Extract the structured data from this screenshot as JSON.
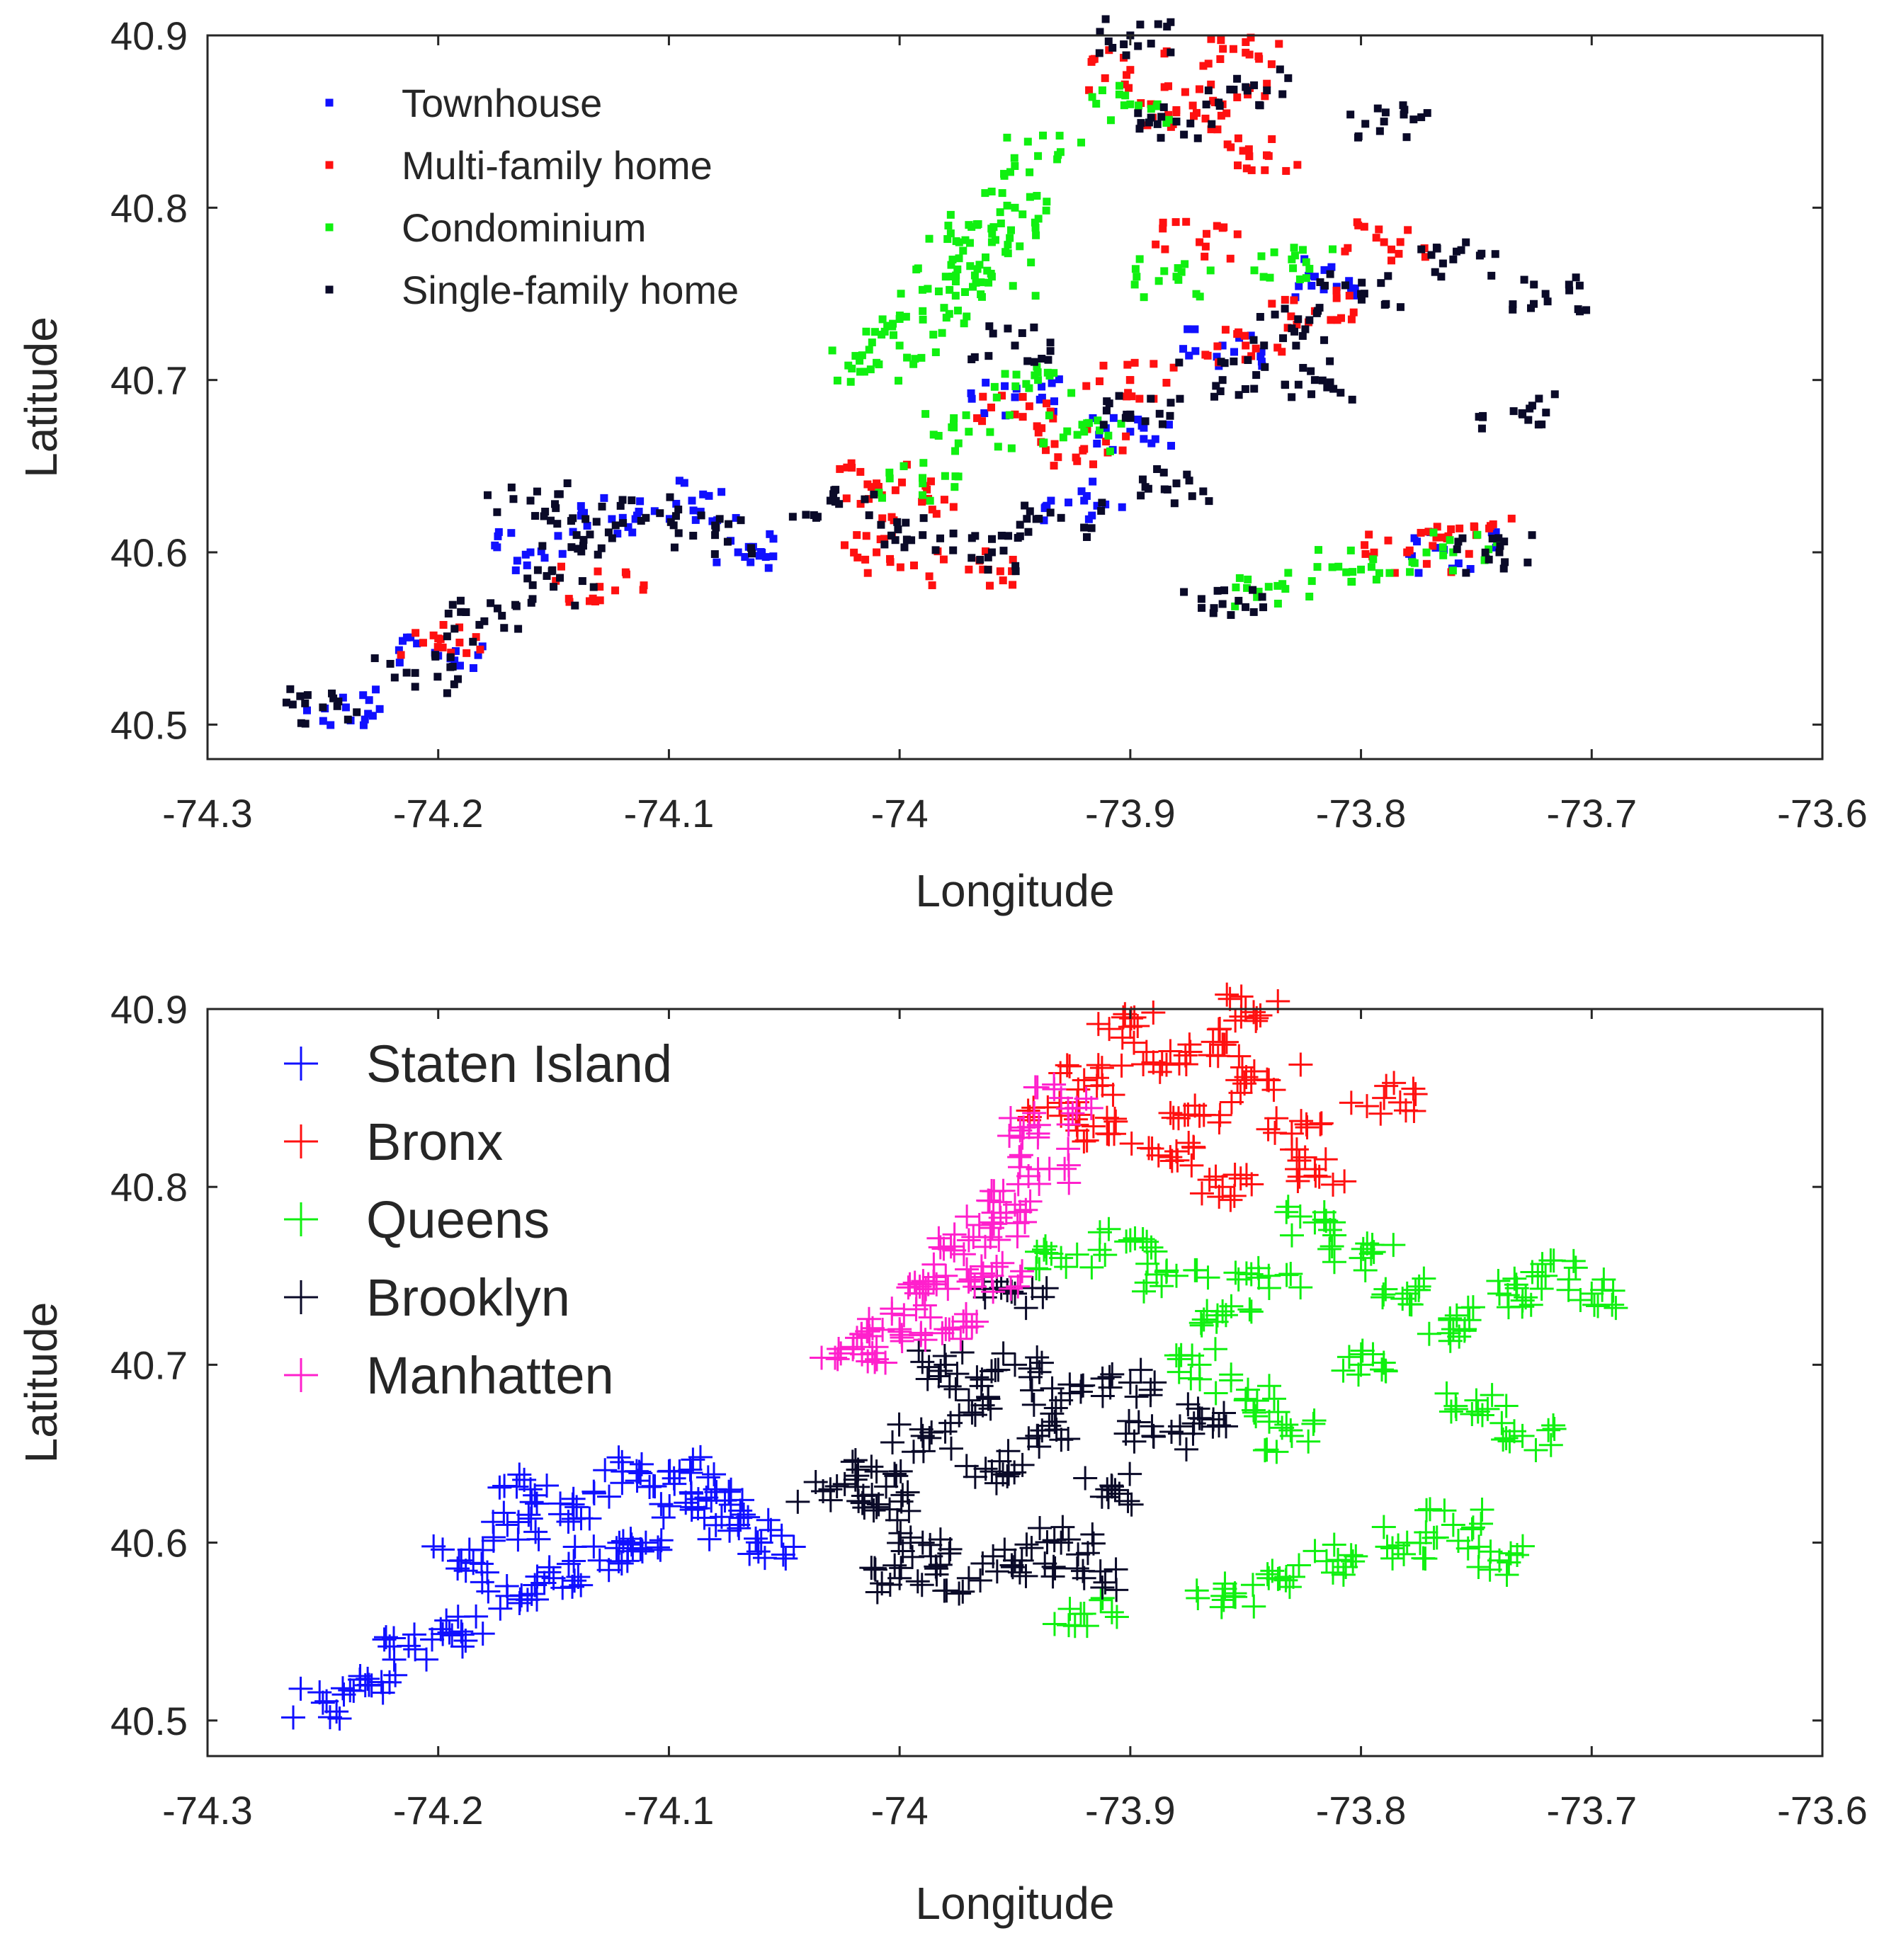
{
  "chart_data": [
    {
      "type": "scatter",
      "title": "",
      "xlabel": "Longitude",
      "ylabel": "Latitude",
      "xlim": [
        -74.3,
        -73.6
      ],
      "ylim": [
        40.48,
        40.9
      ],
      "xticks": [
        -74.3,
        -74.2,
        -74.1,
        -74.0,
        -73.9,
        -73.8,
        -73.7,
        -73.6
      ],
      "xtick_labels": [
        "-74.3",
        "-74.2",
        "-74.1",
        "-74",
        "-73.9",
        "-73.8",
        "-73.7",
        "-73.6"
      ],
      "yticks": [
        40.5,
        40.6,
        40.7,
        40.8,
        40.9
      ],
      "ytick_labels": [
        "40.5",
        "40.6",
        "40.7",
        "40.8",
        "40.9"
      ],
      "grid": false,
      "legend_position": "top-left",
      "marker": "square",
      "series": [
        {
          "name": "Townhouse",
          "color": "#1010ff",
          "points": [
            [
              -74.24,
              40.51
            ],
            [
              -74.16,
              40.6
            ],
            [
              -74.12,
              40.62
            ],
            [
              -74.09,
              40.63
            ],
            [
              -74.2,
              40.54
            ],
            [
              -74.07,
              40.6
            ],
            [
              -73.95,
              40.69
            ],
            [
              -73.9,
              40.67
            ],
            [
              -73.86,
              40.72
            ],
            [
              -73.82,
              40.76
            ],
            [
              -73.76,
              40.6
            ],
            [
              -73.92,
              40.63
            ]
          ]
        },
        {
          "name": "Multi-family home",
          "color": "#ff1010",
          "points": [
            [
              -73.9,
              40.88
            ],
            [
              -73.88,
              40.85
            ],
            [
              -73.86,
              40.86
            ],
            [
              -73.85,
              40.89
            ],
            [
              -73.84,
              40.83
            ],
            [
              -73.87,
              40.78
            ],
            [
              -73.82,
              40.74
            ],
            [
              -73.9,
              40.7
            ],
            [
              -73.95,
              40.68
            ],
            [
              -73.99,
              40.63
            ],
            [
              -74.01,
              40.6
            ],
            [
              -73.97,
              40.59
            ],
            [
              -73.78,
              40.6
            ],
            [
              -73.75,
              40.61
            ],
            [
              -74.13,
              40.58
            ],
            [
              -74.2,
              40.55
            ],
            [
              -73.79,
              40.78
            ],
            [
              -73.85,
              40.72
            ],
            [
              -73.92,
              40.66
            ],
            [
              -74.01,
              40.64
            ]
          ]
        },
        {
          "name": "Condominium",
          "color": "#10f010",
          "points": [
            [
              -73.97,
              40.79
            ],
            [
              -73.96,
              40.78
            ],
            [
              -73.95,
              40.8
            ],
            [
              -73.94,
              40.83
            ],
            [
              -73.99,
              40.74
            ],
            [
              -74.0,
              40.72
            ],
            [
              -74.01,
              40.71
            ],
            [
              -73.98,
              40.76
            ],
            [
              -73.96,
              40.76
            ],
            [
              -73.94,
              40.7
            ],
            [
              -73.92,
              40.67
            ],
            [
              -73.97,
              40.67
            ],
            [
              -73.9,
              40.86
            ],
            [
              -73.88,
              40.76
            ],
            [
              -73.83,
              40.77
            ],
            [
              -73.76,
              40.6
            ],
            [
              -73.8,
              40.59
            ],
            [
              -73.84,
              40.58
            ],
            [
              -73.99,
              40.64
            ]
          ]
        },
        {
          "name": "Single-family home",
          "color": "#0a0a28",
          "points": [
            [
              -74.25,
              40.51
            ],
            [
              -74.21,
              40.53
            ],
            [
              -74.18,
              40.56
            ],
            [
              -74.15,
              40.58
            ],
            [
              -74.14,
              40.61
            ],
            [
              -74.11,
              40.62
            ],
            [
              -74.08,
              40.61
            ],
            [
              -74.16,
              40.63
            ],
            [
              -74.03,
              40.63
            ],
            [
              -73.99,
              40.61
            ],
            [
              -73.96,
              40.6
            ],
            [
              -73.93,
              40.62
            ],
            [
              -73.9,
              40.68
            ],
            [
              -73.86,
              40.7
            ],
            [
              -73.83,
              40.73
            ],
            [
              -73.8,
              40.75
            ],
            [
              -73.76,
              40.77
            ],
            [
              -73.72,
              40.75
            ],
            [
              -73.85,
              40.87
            ],
            [
              -73.88,
              40.85
            ],
            [
              -73.79,
              40.85
            ],
            [
              -73.9,
              40.9
            ],
            [
              -73.82,
              40.7
            ],
            [
              -73.73,
              40.68
            ],
            [
              -73.95,
              40.72
            ],
            [
              -73.88,
              40.64
            ],
            [
              -73.86,
              40.57
            ],
            [
              -73.74,
              40.6
            ]
          ]
        }
      ]
    },
    {
      "type": "scatter",
      "title": "",
      "xlabel": "Longitude",
      "ylabel": "Latitude",
      "xlim": [
        -74.3,
        -73.6
      ],
      "ylim": [
        40.48,
        40.9
      ],
      "xticks": [
        -74.3,
        -74.2,
        -74.1,
        -74.0,
        -73.9,
        -73.8,
        -73.7,
        -73.6
      ],
      "xtick_labels": [
        "-74.3",
        "-74.2",
        "-74.1",
        "-74",
        "-73.9",
        "-73.8",
        "-73.7",
        "-73.6"
      ],
      "yticks": [
        40.5,
        40.6,
        40.7,
        40.8,
        40.9
      ],
      "ytick_labels": [
        "40.5",
        "40.6",
        "40.7",
        "40.8",
        "40.9"
      ],
      "grid": false,
      "legend_position": "top-left",
      "marker": "plus",
      "series": [
        {
          "name": "Staten Island",
          "color": "#1010ff",
          "points": [
            [
              -74.25,
              40.51
            ],
            [
              -74.23,
              40.52
            ],
            [
              -74.21,
              40.54
            ],
            [
              -74.19,
              40.55
            ],
            [
              -74.17,
              40.57
            ],
            [
              -74.15,
              40.58
            ],
            [
              -74.13,
              40.59
            ],
            [
              -74.11,
              40.6
            ],
            [
              -74.09,
              40.62
            ],
            [
              -74.07,
              40.61
            ],
            [
              -74.16,
              40.63
            ],
            [
              -74.14,
              40.62
            ],
            [
              -74.12,
              40.64
            ],
            [
              -74.1,
              40.64
            ],
            [
              -74.08,
              40.63
            ],
            [
              -74.19,
              40.59
            ],
            [
              -74.17,
              40.61
            ],
            [
              -74.06,
              40.6
            ]
          ]
        },
        {
          "name": "Bronx",
          "color": "#ff1010",
          "points": [
            [
              -73.92,
              40.86
            ],
            [
              -73.9,
              40.89
            ],
            [
              -73.89,
              40.87
            ],
            [
              -73.87,
              40.84
            ],
            [
              -73.86,
              40.88
            ],
            [
              -73.85,
              40.9
            ],
            [
              -73.84,
              40.86
            ],
            [
              -73.83,
              40.83
            ],
            [
              -73.82,
              40.81
            ],
            [
              -73.91,
              40.83
            ],
            [
              -73.88,
              40.82
            ],
            [
              -73.86,
              40.8
            ],
            [
              -73.79,
              40.85
            ],
            [
              -73.93,
              40.84
            ]
          ]
        },
        {
          "name": "Queens",
          "color": "#10f010",
          "points": [
            [
              -73.93,
              40.76
            ],
            [
              -73.9,
              40.77
            ],
            [
              -73.88,
              40.75
            ],
            [
              -73.86,
              40.73
            ],
            [
              -73.84,
              40.75
            ],
            [
              -73.82,
              40.78
            ],
            [
              -73.8,
              40.76
            ],
            [
              -73.78,
              40.74
            ],
            [
              -73.76,
              40.72
            ],
            [
              -73.74,
              40.74
            ],
            [
              -73.72,
              40.75
            ],
            [
              -73.7,
              40.74
            ],
            [
              -73.75,
              40.68
            ],
            [
              -73.73,
              40.66
            ],
            [
              -73.8,
              40.7
            ],
            [
              -73.85,
              40.68
            ],
            [
              -73.87,
              40.7
            ],
            [
              -73.83,
              40.66
            ],
            [
              -73.78,
              40.6
            ],
            [
              -73.76,
              40.61
            ],
            [
              -73.81,
              40.59
            ],
            [
              -73.74,
              40.59
            ],
            [
              -73.84,
              40.58
            ],
            [
              -73.86,
              40.57
            ],
            [
              -73.92,
              40.56
            ]
          ]
        },
        {
          "name": "Brooklyn",
          "color": "#0a0a28",
          "points": [
            [
              -74.03,
              40.63
            ],
            [
              -74.01,
              40.62
            ],
            [
              -73.99,
              40.6
            ],
            [
              -73.97,
              40.58
            ],
            [
              -73.95,
              40.59
            ],
            [
              -73.93,
              40.6
            ],
            [
              -73.91,
              40.63
            ],
            [
              -73.89,
              40.66
            ],
            [
              -73.93,
              40.68
            ],
            [
              -73.95,
              40.7
            ],
            [
              -73.97,
              40.68
            ],
            [
              -73.99,
              40.66
            ],
            [
              -74.01,
              40.64
            ],
            [
              -73.96,
              40.64
            ],
            [
              -73.94,
              40.66
            ],
            [
              -73.9,
              40.69
            ],
            [
              -73.87,
              40.67
            ],
            [
              -73.98,
              40.7
            ],
            [
              -73.95,
              40.74
            ],
            [
              -73.92,
              40.58
            ],
            [
              -74.0,
              40.58
            ]
          ]
        },
        {
          "name": "Manhatten",
          "color": "#ff20cc",
          "points": [
            [
              -74.01,
              40.71
            ],
            [
              -74.0,
              40.72
            ],
            [
              -73.99,
              40.74
            ],
            [
              -73.98,
              40.75
            ],
            [
              -73.97,
              40.77
            ],
            [
              -73.96,
              40.78
            ],
            [
              -73.95,
              40.79
            ],
            [
              -73.94,
              40.81
            ],
            [
              -73.94,
              40.83
            ],
            [
              -73.93,
              40.85
            ],
            [
              -73.98,
              40.72
            ],
            [
              -73.96,
              40.75
            ],
            [
              -74.02,
              40.71
            ]
          ]
        }
      ]
    }
  ]
}
